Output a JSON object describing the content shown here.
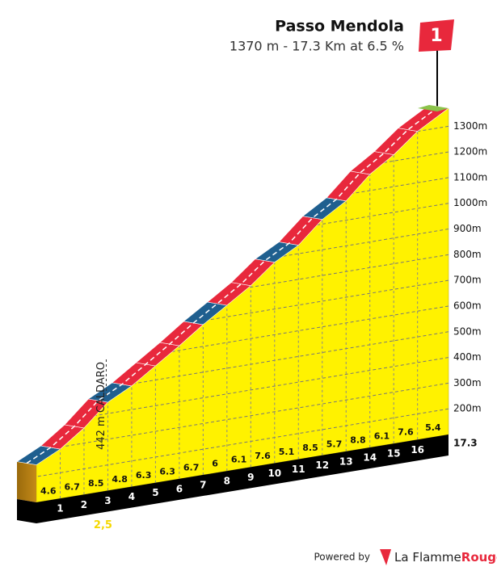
{
  "chart_data": {
    "type": "profile",
    "title": "Passo Mendola",
    "subtitle": "1370 m - 17.3 Km at 6.5 %",
    "x": [
      0,
      1,
      2,
      3,
      4,
      5,
      6,
      7,
      8,
      9,
      10,
      11,
      12,
      13,
      14,
      15,
      16,
      17.3
    ],
    "elevation": [
      246,
      292,
      359,
      444,
      492,
      555,
      618,
      685,
      745,
      806,
      882,
      933,
      1018,
      1075,
      1163,
      1224,
      1300,
      1370
    ],
    "gradients": [
      4.6,
      6.7,
      8.5,
      4.8,
      6.3,
      6.3,
      6.7,
      6.0,
      6.1,
      7.6,
      5.1,
      8.5,
      5.7,
      8.8,
      6.1,
      7.6,
      5.4
    ],
    "segment_colors": [
      "#1f5f8f",
      "#e8283c",
      "#e8283c",
      "#1f5f8f",
      "#e8283c",
      "#e8283c",
      "#e8283c",
      "#1f5f8f",
      "#e8283c",
      "#e8283c",
      "#1f5f8f",
      "#e8283c",
      "#1f5f8f",
      "#e8283c",
      "#e8283c",
      "#e8283c",
      "#e8283c"
    ],
    "xlim": [
      0,
      17.3
    ],
    "ylim": [
      100,
      1400
    ],
    "yticks": [
      {
        "value": 200,
        "label": "200m"
      },
      {
        "value": 300,
        "label": "300m"
      },
      {
        "value": 400,
        "label": "400m"
      },
      {
        "value": 500,
        "label": "500m"
      },
      {
        "value": 600,
        "label": "600m"
      },
      {
        "value": 700,
        "label": "700m"
      },
      {
        "value": 800,
        "label": "800m"
      },
      {
        "value": 900,
        "label": "900m"
      },
      {
        "value": 1000,
        "label": "1000m"
      },
      {
        "value": 1100,
        "label": "1100m"
      },
      {
        "value": 1200,
        "label": "1200m"
      },
      {
        "value": 1300,
        "label": "1300m"
      }
    ],
    "fill_color": "#fff200",
    "annotation": "442 m CALDARO",
    "annotation_km": "2,5",
    "flag_label": "1"
  },
  "footer": {
    "powered_by": "Powered by",
    "brand_name": "La Flamme",
    "brand_accent": "Rouge"
  }
}
